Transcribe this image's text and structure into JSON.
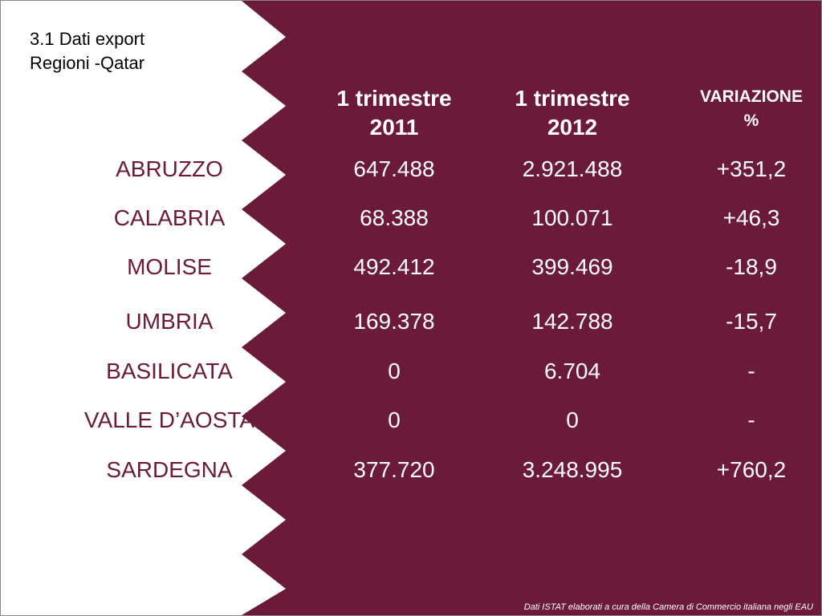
{
  "title": [
    "3.1 Dati export",
    "Regioni -Qatar"
  ],
  "table": {
    "columns": [
      [
        "1 trimestre",
        "2011"
      ],
      [
        "1 trimestre",
        "2012"
      ],
      [
        "VARIAZIONE",
        "%"
      ]
    ],
    "rows": [
      [
        "ABRUZZO",
        "647.488",
        "2.921.488",
        "+351,2"
      ],
      [
        "CALABRIA",
        "68.388",
        "100.071",
        "+46,3"
      ],
      [
        "MOLISE",
        "492.412",
        "399.469",
        "-18,9"
      ],
      [
        "UMBRIA",
        "169.378",
        "142.788",
        "-15,7"
      ],
      [
        "BASILICATA",
        "0",
        "6.704",
        "-"
      ],
      [
        "VALLE D’AOSTA",
        "0",
        "0",
        "-"
      ],
      [
        "SARDEGNA",
        "377.720",
        "3.248.995",
        "+760,2"
      ]
    ]
  },
  "footer": "Dati ISTAT elaborati a cura della Camera di Commercio italiana negli EAU"
}
